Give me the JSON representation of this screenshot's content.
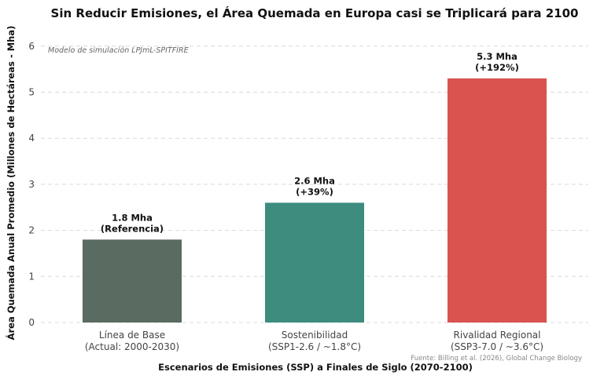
{
  "chart_data": {
    "type": "bar",
    "title": "Sin Reducir Emisiones, el Área Quemada en Europa casi se Triplicará para 2100",
    "annotation": "Modelo de simulación LPJmL-SPITFIRE",
    "ylabel": "Área Quemada Anual Promedio (Millones de Hectáreas - Mha)",
    "xlabel": "Escenarios de Emisiones (SSP) a Finales de Siglo (2070-2100)",
    "source": "Fuente: Billing et al. (2026), Global Change Biology",
    "ylim": [
      0,
      6.4
    ],
    "yticks": [
      0,
      1,
      2,
      3,
      4,
      5,
      6
    ],
    "grid": true,
    "categories": [
      {
        "line1": "Línea de Base",
        "line2": "(Actual: 2000-2030)"
      },
      {
        "line1": "Sostenibilidad",
        "line2": "(SSP1-2.6 / ~1.8°C)"
      },
      {
        "line1": "Rivalidad Regional",
        "line2": "(SSP3-7.0 / ~3.6°C)"
      }
    ],
    "values": [
      1.8,
      2.6,
      5.3
    ],
    "data_labels": [
      {
        "line1": "1.8 Mha",
        "line2": "(Referencia)"
      },
      {
        "line1": "2.6 Mha",
        "line2": "(+39%)"
      },
      {
        "line1": "5.3 Mha",
        "line2": "(+192%)"
      }
    ],
    "colors": [
      "#5a6b61",
      "#3d8c7e",
      "#d9534f"
    ]
  }
}
